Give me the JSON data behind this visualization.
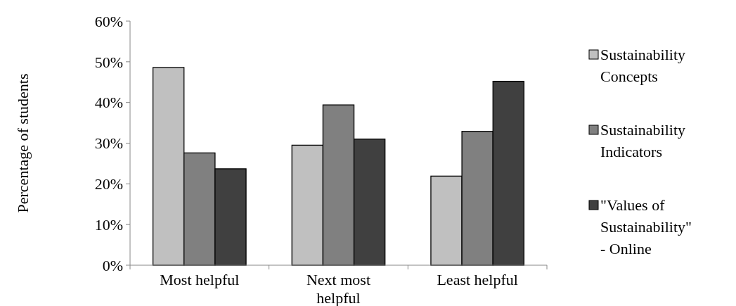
{
  "chart_data": {
    "type": "bar",
    "ylabel": "Percentage of students",
    "categories": [
      "Most helpful",
      "Next most helpful",
      "Least helpful"
    ],
    "series": [
      {
        "name": "Sustainability Concepts",
        "color": "#c0c0c0",
        "values": [
          48.6,
          29.5,
          21.9
        ]
      },
      {
        "name": "Sustainability Indicators",
        "color": "#808080",
        "values": [
          27.6,
          39.4,
          32.9
        ]
      },
      {
        "name": "\"Values of Sustainability\" - Online",
        "color": "#404040",
        "values": [
          23.7,
          31.0,
          45.2
        ]
      }
    ],
    "ylim": [
      0,
      60
    ],
    "yticks": [
      {
        "value": 0,
        "label": "0%"
      },
      {
        "value": 10,
        "label": "10%"
      },
      {
        "value": 20,
        "label": "20%"
      },
      {
        "value": 30,
        "label": "30%"
      },
      {
        "value": 40,
        "label": "40%"
      },
      {
        "value": 50,
        "label": "50%"
      },
      {
        "value": 60,
        "label": "60%"
      }
    ],
    "legend": "right"
  }
}
